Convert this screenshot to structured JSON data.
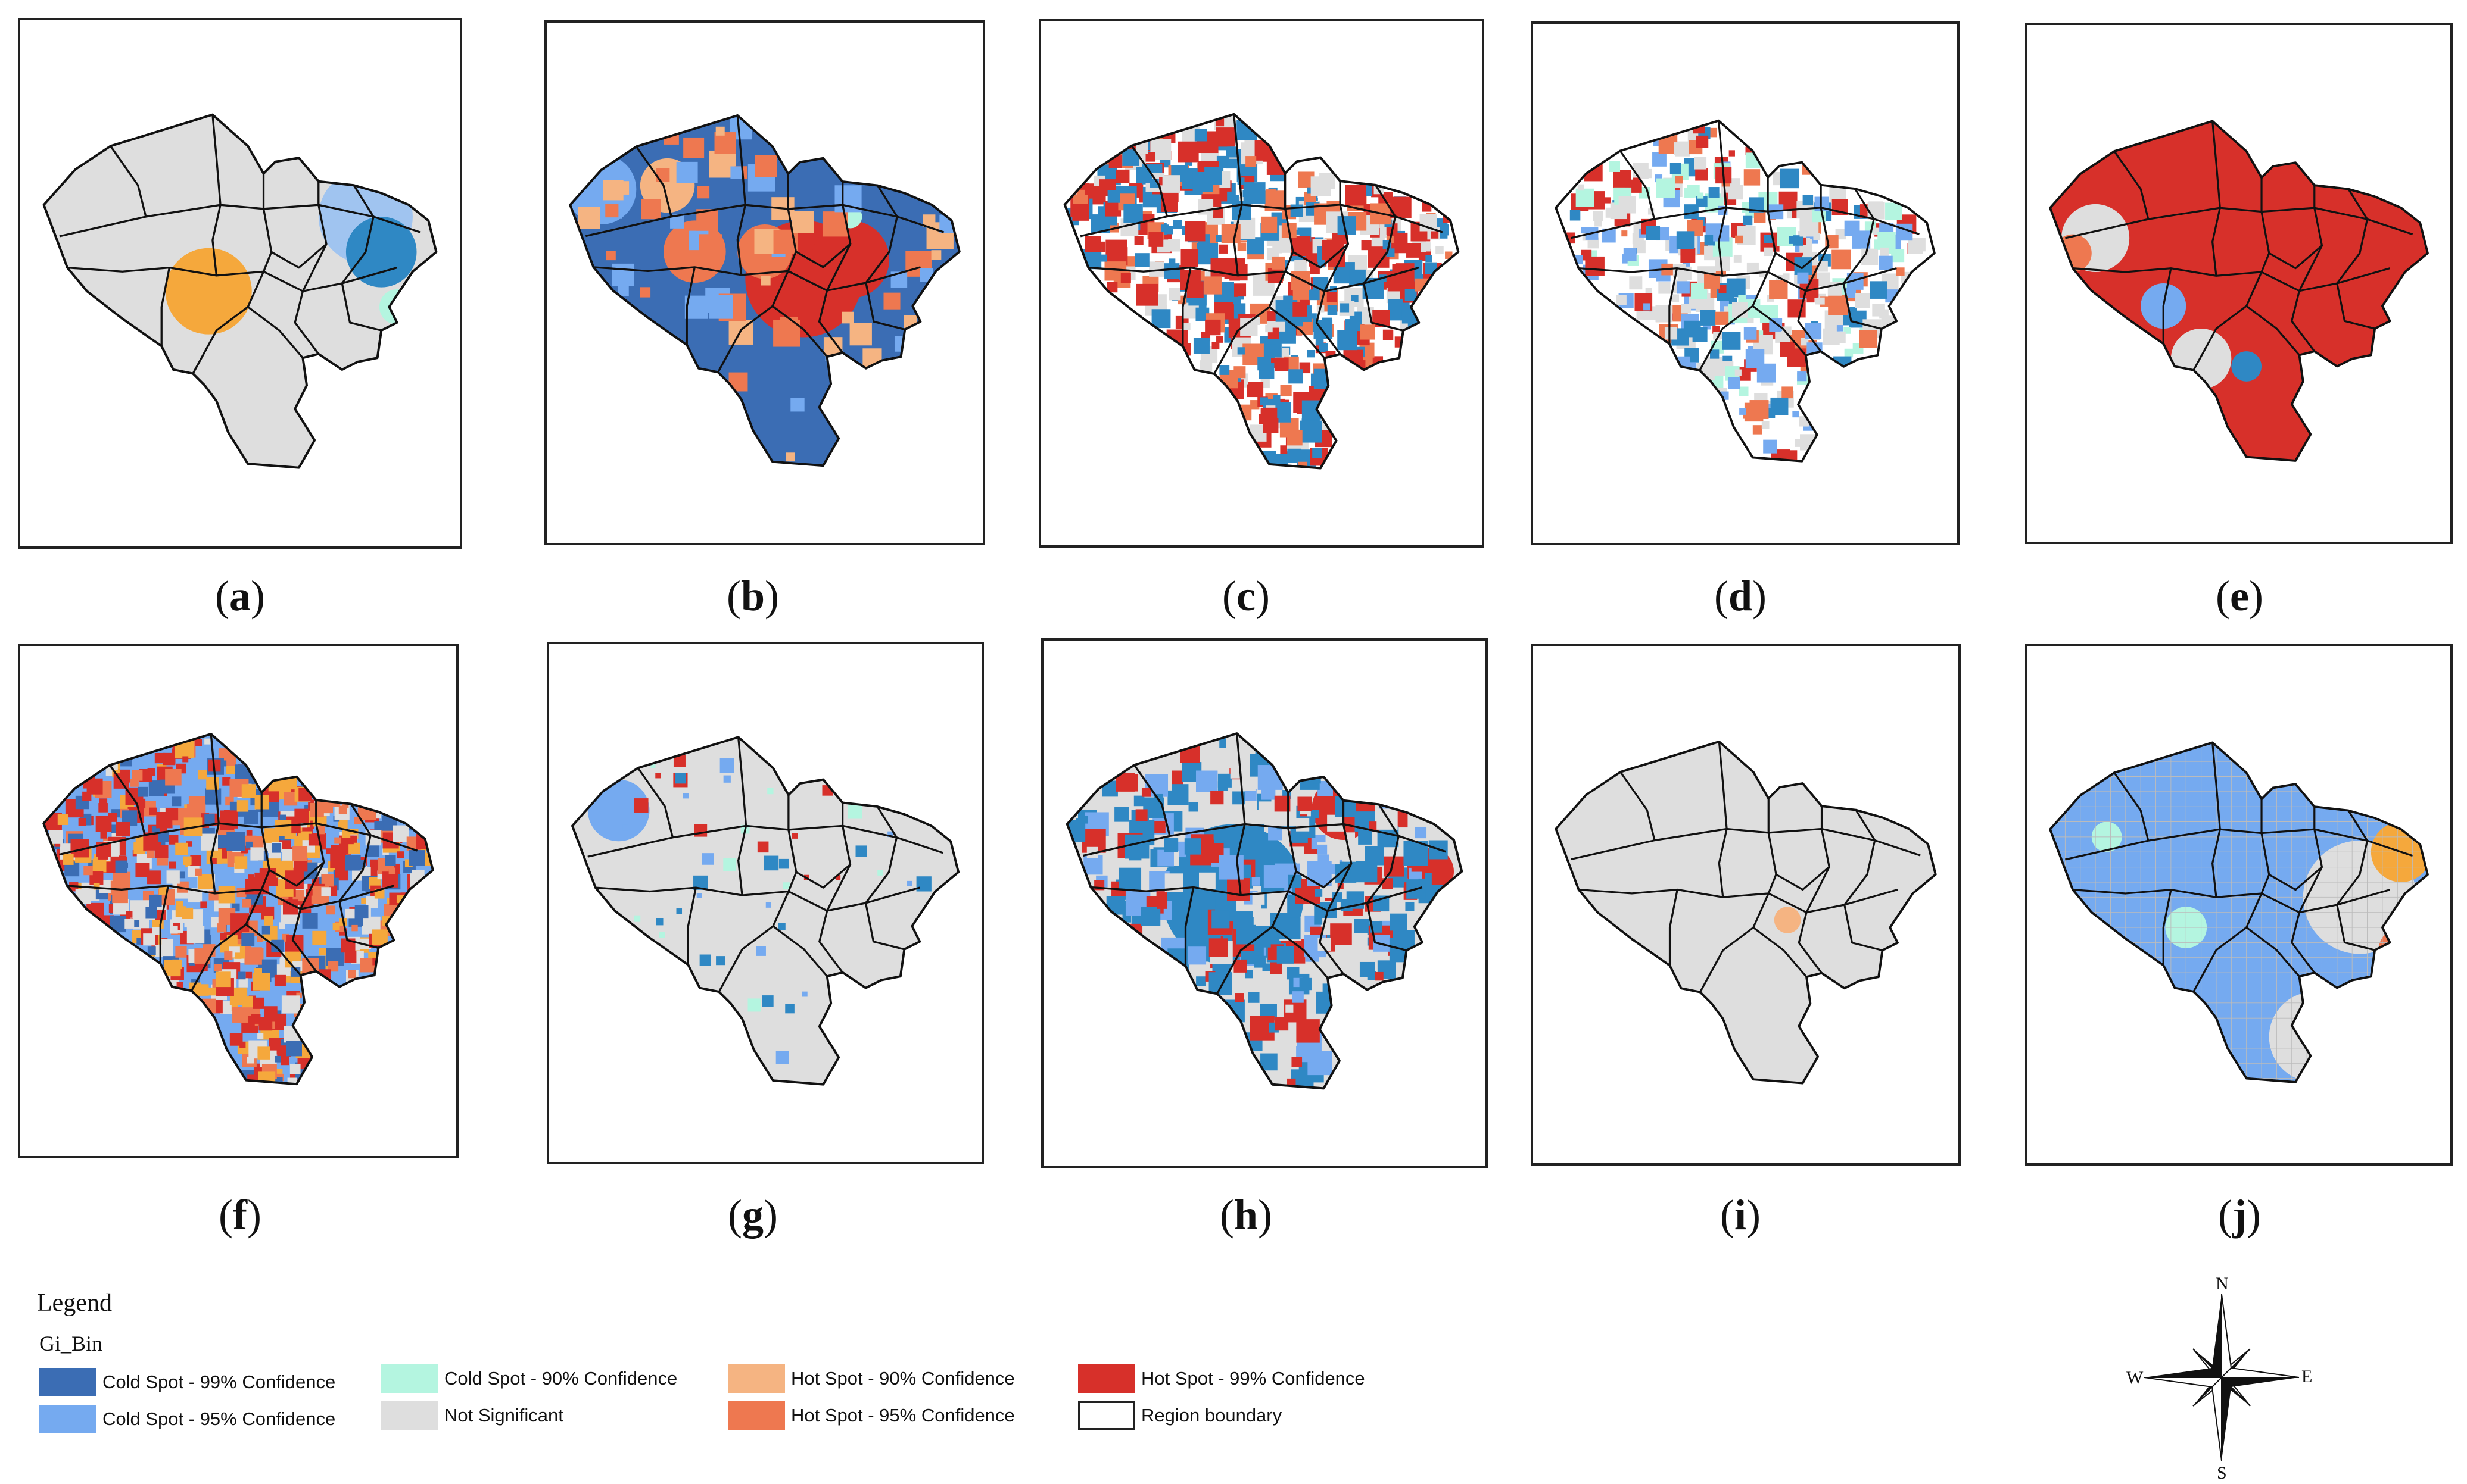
{
  "panels": [
    {
      "id": "a",
      "label": "a"
    },
    {
      "id": "b",
      "label": "b"
    },
    {
      "id": "c",
      "label": "c"
    },
    {
      "id": "d",
      "label": "d"
    },
    {
      "id": "e",
      "label": "e"
    },
    {
      "id": "f",
      "label": "f"
    },
    {
      "id": "g",
      "label": "g"
    },
    {
      "id": "h",
      "label": "h"
    },
    {
      "id": "i",
      "label": "i"
    },
    {
      "id": "j",
      "label": "j"
    }
  ],
  "legend": {
    "title": "Legend",
    "subtitle": "Gi_Bin",
    "items": [
      {
        "label": "Cold Spot - 99% Confidence",
        "color": "#3b6db4"
      },
      {
        "label": "Cold Spot - 95% Confidence",
        "color": "#75aaf0"
      },
      {
        "label": "Cold Spot - 90% Confidence",
        "color": "#b4f5e0"
      },
      {
        "label": "Not Significant",
        "color": "#dedede"
      },
      {
        "label": "Hot Spot - 90% Confidence",
        "color": "#f5b482"
      },
      {
        "label": "Hot Spot - 95% Confidence",
        "color": "#ee7850"
      },
      {
        "label": "Hot Spot - 99% Confidence",
        "color": "#d7302a"
      },
      {
        "label": "Region boundary",
        "color": "#ffffff"
      }
    ]
  },
  "compass": {
    "n": "N",
    "s": "S",
    "e": "E",
    "w": "W"
  }
}
